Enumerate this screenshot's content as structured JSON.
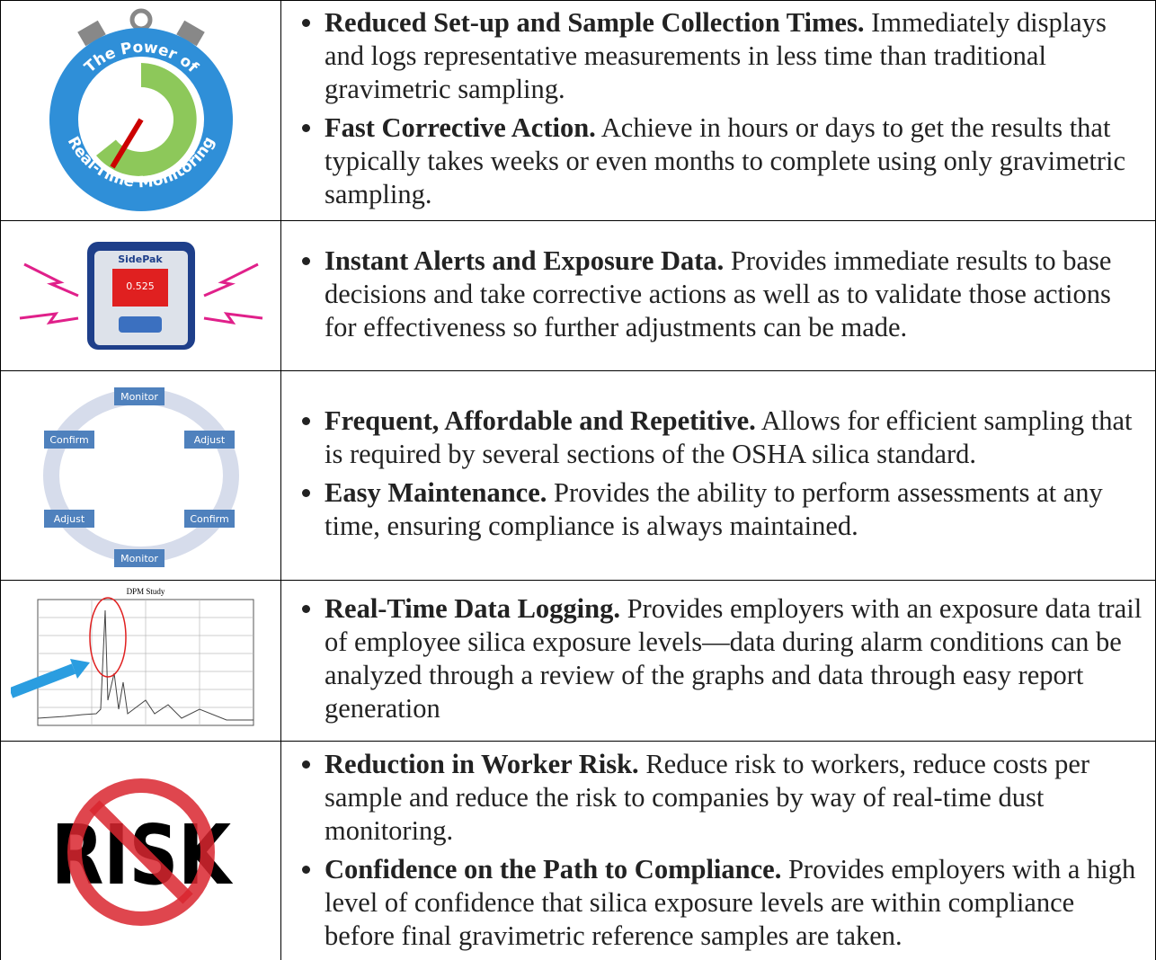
{
  "rows": [
    {
      "image": {
        "top_text": "The Power of",
        "bottom_text": "Real-Time Monitoring"
      },
      "bullets": [
        {
          "heading": "Reduced Set-up and Sample Collection Times.",
          "text": "Immediately displays and logs representative measurements in less time than traditional gravimetric sampling."
        },
        {
          "heading": "Fast Corrective Action.",
          "text": "Achieve in hours or days to get the results that typically takes weeks or even months to complete using only gravimetric sampling."
        }
      ]
    },
    {
      "image": {
        "brand": "SidePak",
        "reading": "0.525"
      },
      "bullets": [
        {
          "heading": "Instant Alerts and Exposure Data.",
          "text": "Provides immediate results to base decisions and take corrective actions as well as to validate those actions for effectiveness so further adjustments can be made."
        }
      ]
    },
    {
      "image": {
        "labels": [
          "Monitor",
          "Adjust",
          "Confirm",
          "Monitor",
          "Adjust",
          "Confirm"
        ]
      },
      "bullets": [
        {
          "heading": "Frequent, Affordable and Repetitive.",
          "text": "Allows for efficient sampling that is required by several sections of the OSHA silica standard."
        },
        {
          "heading": "Easy Maintenance.",
          "text": "Provides the ability to perform assessments at any time, ensuring compliance is always maintained."
        }
      ]
    },
    {
      "image": {
        "title": "DPM Study"
      },
      "bullets": [
        {
          "heading": "Real-Time Data Logging.",
          "text": "Provides employers with an exposure data trail of employee silica exposure levels—data during alarm conditions can be analyzed through a review of the graphs and data through easy report generation"
        }
      ]
    },
    {
      "image": {
        "word": "RISK"
      },
      "bullets": [
        {
          "heading": "Reduction in Worker Risk.",
          "text": "Reduce risk to workers, reduce costs per sample and reduce the risk to companies by way of real-time dust monitoring."
        },
        {
          "heading": "Confidence on the Path to Compliance.",
          "text": "Provides employers with a high level of confidence that silica exposure levels are within compliance before final gravimetric reference samples are taken."
        }
      ]
    }
  ]
}
